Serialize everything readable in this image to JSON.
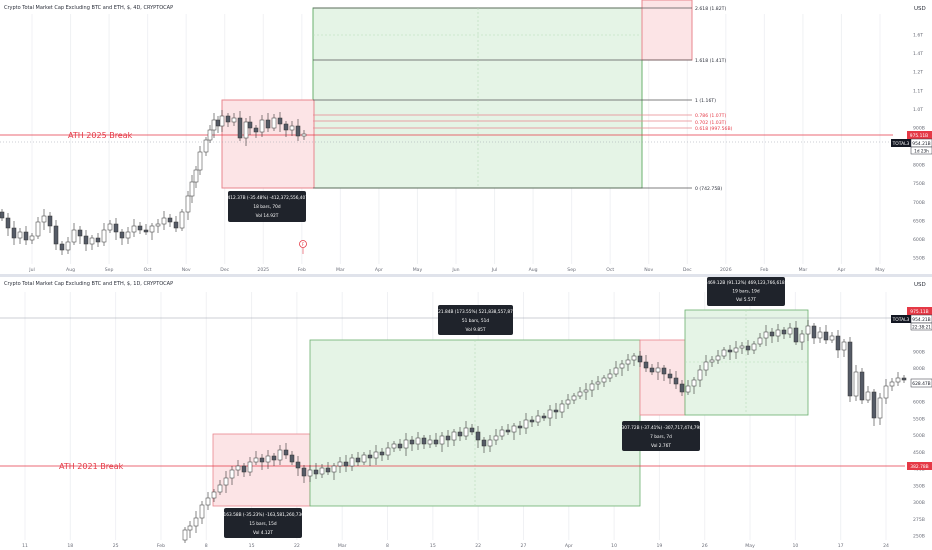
{
  "colors": {
    "red": "#e53946",
    "green_fill": "#e5f4e6",
    "green_line": "#6ab06e",
    "red_fill": "#fce4e6",
    "red_line": "#e8868e",
    "candle_up": "#ffffff",
    "candle_down": "#555b66",
    "axis_text": "#6a6d78",
    "tooltip_bg": "#1f232b",
    "badge_dark": "#131722"
  },
  "top_panel": {
    "title": "Crypto Total Market Cap Excluding BTC and ETH, $, 4D, CRYPTOCAP",
    "currency": "USD",
    "price_axis": [
      "1.6T",
      "1.4T",
      "1.2T",
      "1.1T",
      "1.0T",
      "900B",
      "850B",
      "800B",
      "750B",
      "700B",
      "650B",
      "600B",
      "550B"
    ],
    "time_axis": [
      "Jul",
      "Aug",
      "Sep",
      "Oct",
      "Nov",
      "Dec",
      "2025",
      "Feb",
      "Mar",
      "Apr",
      "May",
      "Jun",
      "Jul",
      "Aug",
      "Sep",
      "Oct",
      "Nov",
      "Dec",
      "2026",
      "Feb",
      "Mar",
      "Apr",
      "May"
    ],
    "ath_label": "ATH 2025 Break",
    "ath_badge": "975.11B",
    "symbol_badge": "TOTAL3",
    "price_badge": "954.21B",
    "countdown_badge": "1d 23h",
    "fib_levels": [
      {
        "label": "2.618 (1.82T)",
        "color": "black"
      },
      {
        "label": "1.618 (1.41T)",
        "color": "black"
      },
      {
        "label": "1 (1.16T)",
        "color": "black"
      },
      {
        "label": "0.786 (1.07T)",
        "color": "red"
      },
      {
        "label": "0.702 (1.03T)",
        "color": "red"
      },
      {
        "label": "0.618 (997.56B)",
        "color": "red"
      },
      {
        "label": "0 (742.75B)",
        "color": "black"
      }
    ],
    "tooltip": {
      "line1": "-412.37B (-35.48%) -412,372,556,407",
      "line2": "18 bars, 70d",
      "line3": "Vol 14.92T"
    },
    "event_marker": "F"
  },
  "bottom_panel": {
    "title": "Crypto Total Market Cap Excluding BTC and ETH, $, 1D, CRYPTOCAP",
    "currency": "USD",
    "price_axis": [
      "900B",
      "800B",
      "700B",
      "600B",
      "550B",
      "500B",
      "450B",
      "400B",
      "350B",
      "300B",
      "275B",
      "250B"
    ],
    "time_axis": [
      "11",
      "18",
      "25",
      "Feb",
      "8",
      "15",
      "22",
      "Mar",
      "8",
      "15",
      "22",
      "27",
      "Apr",
      "10",
      "19",
      "26",
      "May",
      "10",
      "17",
      "24"
    ],
    "ath_label": "ATH 2021 Break",
    "ath_badge": "382.78B",
    "top_badge": "975.11B",
    "symbol_badge": "TOTAL3",
    "price_badge": "954.21B",
    "countdown_badge": "22:38:21",
    "right_badge": "628.47B",
    "tooltips": [
      {
        "line1": "521.84B (173.55%) 521,838,557,879",
        "line2": "51 bars, 51d",
        "line3": "Vol 9.85T"
      },
      {
        "line1": "469.12B (91.12%) 469,123,766,618",
        "line2": "19 bars, 19d",
        "line3": "Vol 5.57T"
      },
      {
        "line1": "-307.72B (-37.41%) -307,717,474,798",
        "line2": "7 bars, 7d",
        "line3": "Vol 2.76T"
      },
      {
        "line1": "-163.58B (-35.23%) -163,581,260,736",
        "line2": "15 bars, 15d",
        "line3": "Vol 4.12T"
      }
    ]
  }
}
